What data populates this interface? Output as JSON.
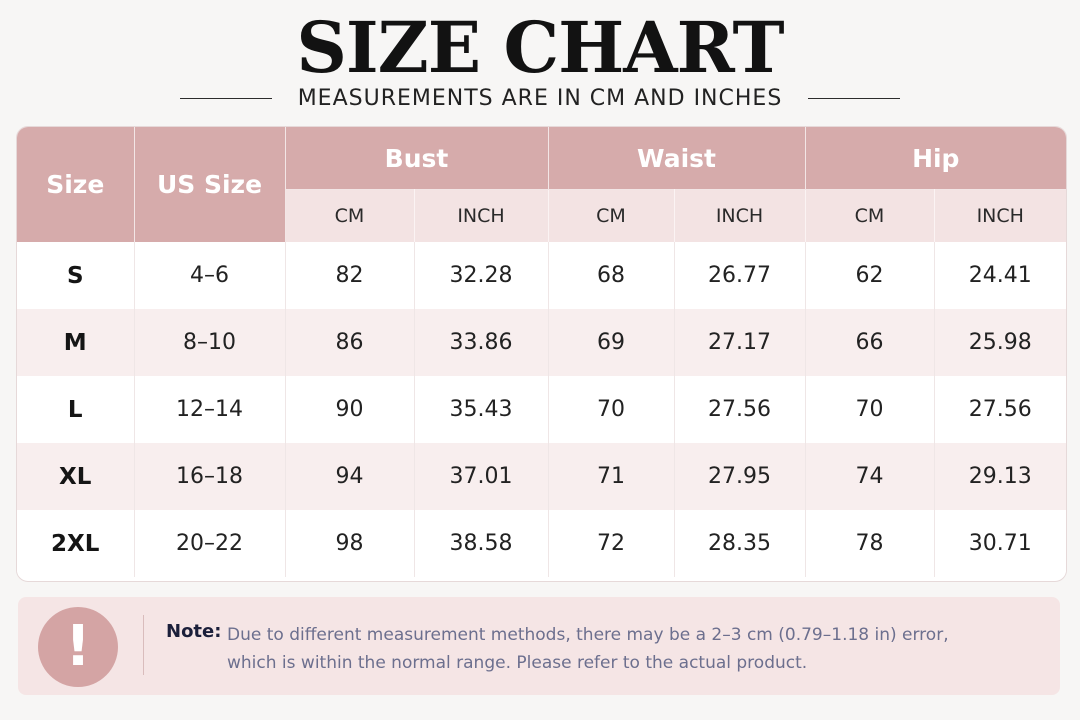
{
  "title": "SIZE CHART",
  "subtitle": "MEASUREMENTS ARE IN CM AND INCHES",
  "headers": {
    "size": "Size",
    "us_size": "US Size",
    "bust": "Bust",
    "waist": "Waist",
    "hip": "Hip",
    "cm": "CM",
    "inch": "INCH"
  },
  "rows": [
    {
      "size": "S",
      "us": "4–6",
      "bust_cm": "82",
      "bust_in": "32.28",
      "waist_cm": "68",
      "waist_in": "26.77",
      "hip_cm": "62",
      "hip_in": "24.41"
    },
    {
      "size": "M",
      "us": "8–10",
      "bust_cm": "86",
      "bust_in": "33.86",
      "waist_cm": "69",
      "waist_in": "27.17",
      "hip_cm": "66",
      "hip_in": "25.98"
    },
    {
      "size": "L",
      "us": "12–14",
      "bust_cm": "90",
      "bust_in": "35.43",
      "waist_cm": "70",
      "waist_in": "27.56",
      "hip_cm": "70",
      "hip_in": "27.56"
    },
    {
      "size": "XL",
      "us": "16–18",
      "bust_cm": "94",
      "bust_in": "37.01",
      "waist_cm": "71",
      "waist_in": "27.95",
      "hip_cm": "74",
      "hip_in": "29.13"
    },
    {
      "size": "2XL",
      "us": "20–22",
      "bust_cm": "98",
      "bust_in": "38.58",
      "waist_cm": "72",
      "waist_in": "28.35",
      "hip_cm": "78",
      "hip_in": "30.71"
    }
  ],
  "note": {
    "icon": "exclamation-icon",
    "icon_glyph": "!",
    "label": "Note:",
    "line1": "Due to different measurement methods, there may be a 2–3 cm (0.79–1.18 in) error,",
    "line2": "which is within the normal range. Please refer to the actual product."
  },
  "colors": {
    "header": "#d6abab",
    "subheader": "#f3e3e3",
    "row_alt": "#f8eeee",
    "note_bg": "#f5e5e5",
    "note_text": "#6c6f8e"
  }
}
